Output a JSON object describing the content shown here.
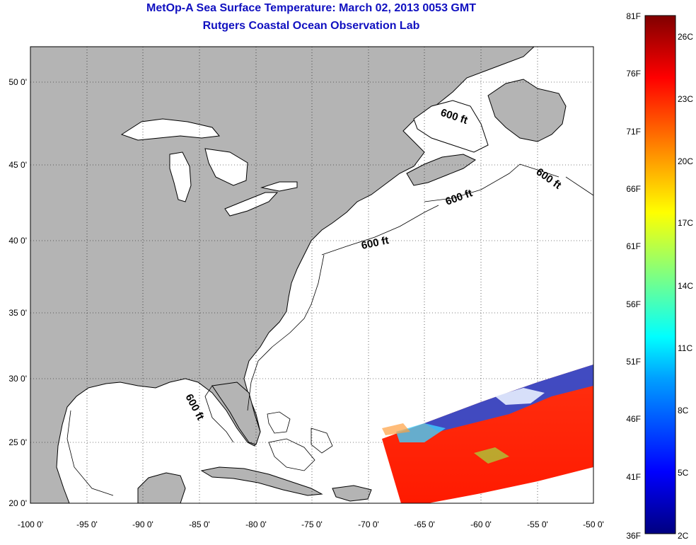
{
  "title_line1": "MetOp-A Sea Surface Temperature:  March 02, 2013 0053 GMT",
  "title_line2": "Rutgers Coastal Ocean Observation Lab",
  "map": {
    "lat_ticks": [
      "50 0'",
      "45 0'",
      "40 0'",
      "35 0'",
      "30 0'",
      "25 0'",
      "20 0'"
    ],
    "lon_ticks": [
      "-100 0'",
      "-95 0'",
      "-90 0'",
      "-85 0'",
      "-80 0'",
      "-75 0'",
      "-70 0'",
      "-65 0'",
      "-60 0'",
      "-55 0'",
      "-50 0'"
    ],
    "isobath_label": "600 ft",
    "isobath_labels_count": 5,
    "land_color": "#b4b4b4",
    "ocean_color": "#ffffff"
  },
  "colorbar": {
    "f_labels": [
      "81F",
      "76F",
      "71F",
      "66F",
      "61F",
      "56F",
      "51F",
      "46F",
      "41F",
      "36F"
    ],
    "c_labels": [
      "26C",
      "23C",
      "20C",
      "17C",
      "14C",
      "11C",
      "8C",
      "5C",
      "2C"
    ],
    "colors": [
      "#000080",
      "#0000ff",
      "#00a0ff",
      "#00ffff",
      "#80ff80",
      "#ffff00",
      "#ff8000",
      "#ff0000",
      "#800000"
    ]
  }
}
